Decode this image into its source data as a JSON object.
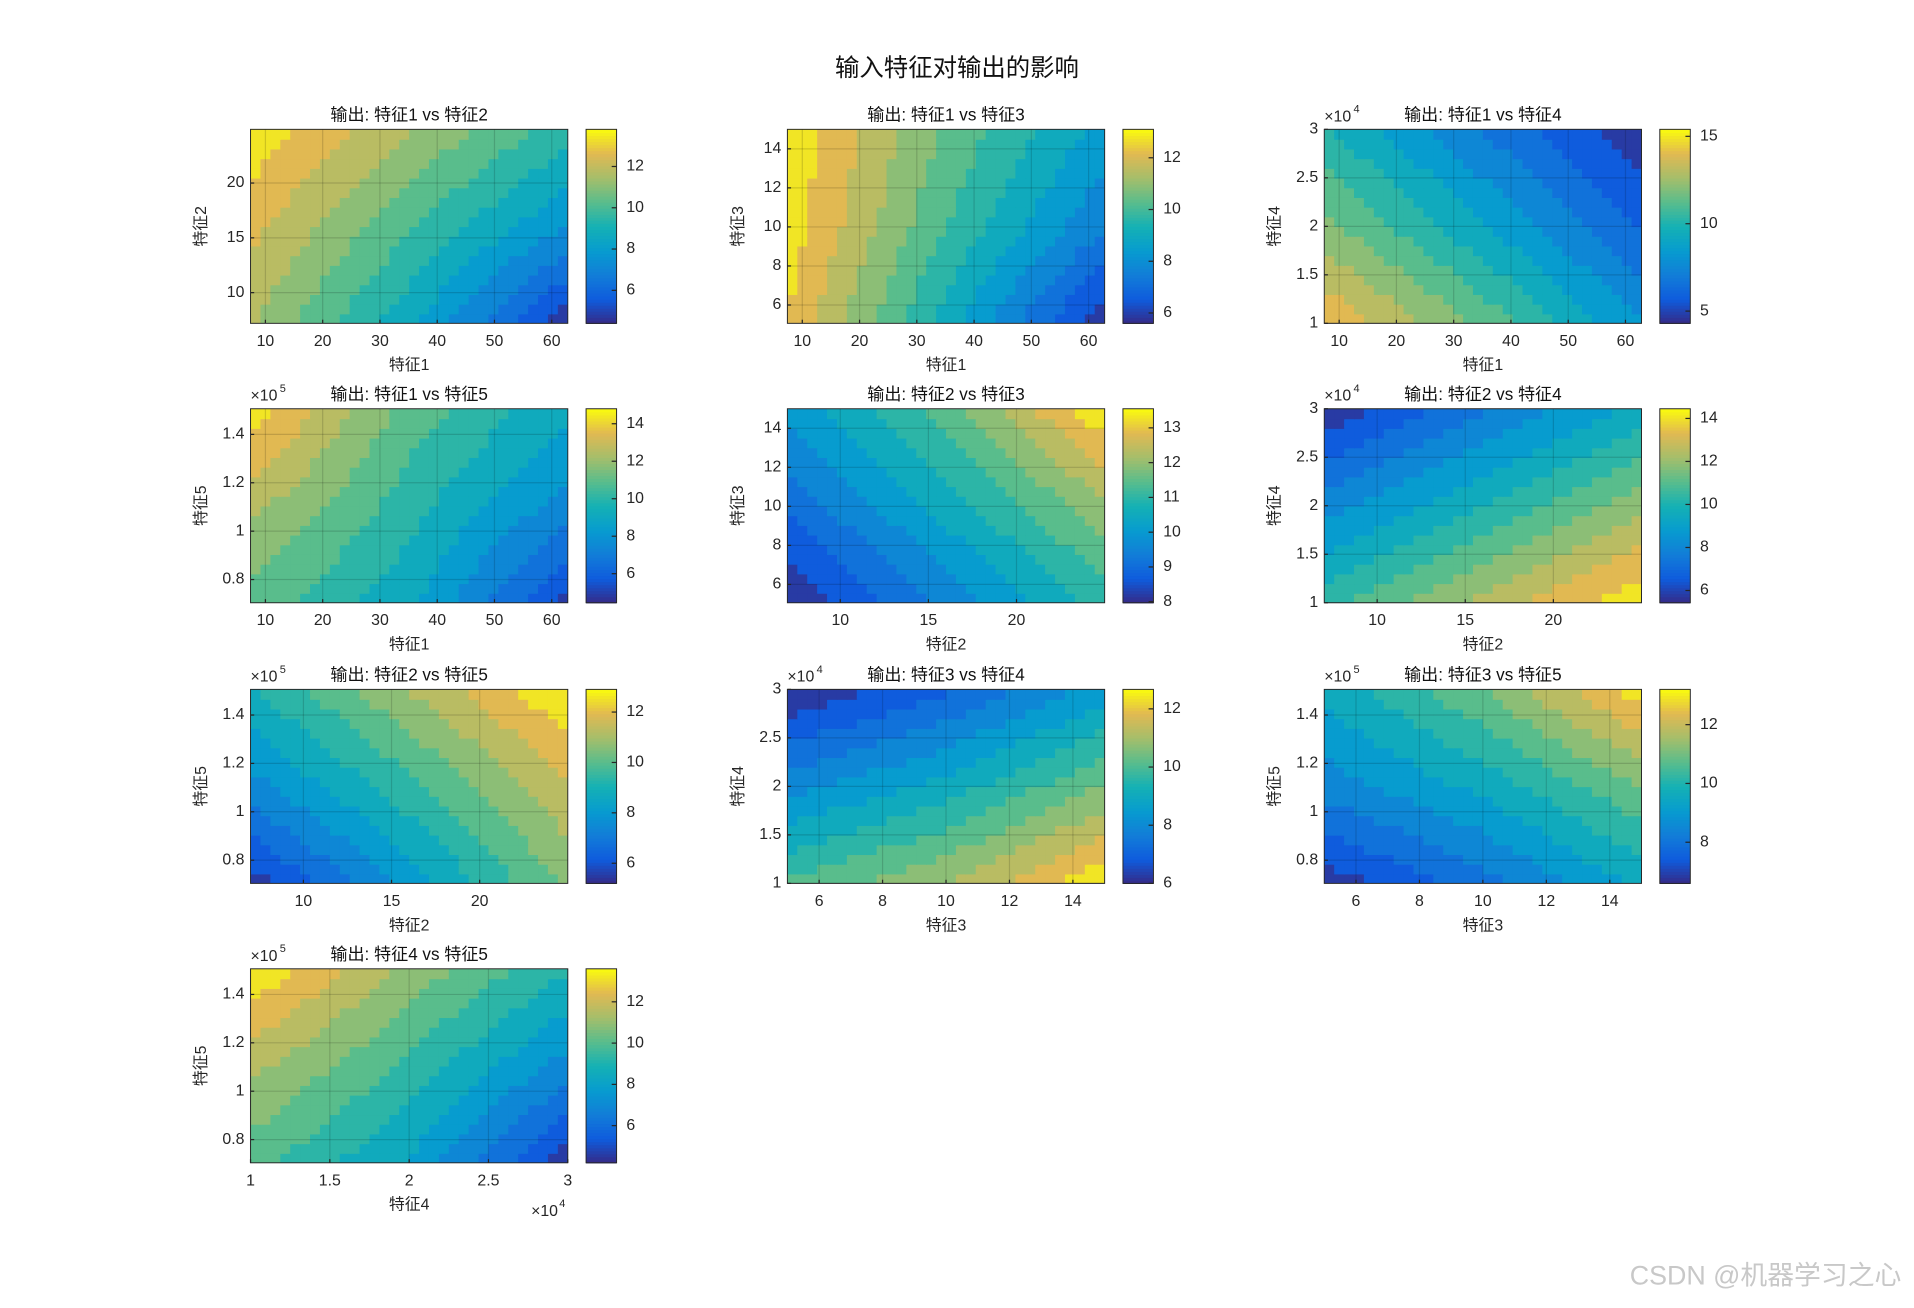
{
  "title": "输入特征对输出的影响",
  "watermark": "CSDN @机器学习之心",
  "chart_data": [
    {
      "type": "contour",
      "title": "输出: 特征1 vs 特征2",
      "xlabel": "特征1",
      "ylabel": "特征2",
      "xlim": [
        7.4,
        62.8
      ],
      "xticks": [
        10,
        20,
        30,
        40,
        50,
        60
      ],
      "ylim": [
        7.2,
        24.9
      ],
      "yticks": [
        10,
        15,
        20
      ],
      "z": [
        [
          11.5,
          8.5,
          4.6
        ],
        [
          12.5,
          10,
          7.5
        ],
        [
          13.6,
          11.5,
          9.5
        ]
      ],
      "clim": [
        4.4,
        13.8
      ],
      "cticks": [
        6,
        8,
        10,
        12
      ],
      "colormap": "parula",
      "grid": true
    },
    {
      "type": "contour",
      "title": "输出: 特征1 vs 特征3",
      "xlabel": "特征1",
      "ylabel": "特征3",
      "xlim": [
        7.4,
        62.8
      ],
      "xticks": [
        10,
        20,
        30,
        40,
        50,
        60
      ],
      "ylim": [
        5.06,
        15
      ],
      "yticks": [
        6,
        8,
        10,
        12,
        14
      ],
      "z": [
        [
          12.5,
          9,
          5.7
        ],
        [
          12.8,
          10,
          7.5
        ],
        [
          13,
          10.5,
          8.5
        ]
      ],
      "clim": [
        5.6,
        13.1
      ],
      "cticks": [
        6,
        8,
        10,
        12
      ],
      "colormap": "parula",
      "grid": true
    },
    {
      "type": "contour",
      "title": "输出: 特征1 vs 特征4",
      "xlabel": "特征1",
      "ylabel": "特征4",
      "xlim": [
        7.4,
        62.8
      ],
      "xticks": [
        10,
        20,
        30,
        40,
        50,
        60
      ],
      "ylim": [
        1,
        3
      ],
      "yticks": [
        1,
        1.5,
        2,
        2.5,
        3
      ],
      "y_multiplier": {
        "base": "×10",
        "exponent": 4
      },
      "z": [
        [
          14.5,
          11.5,
          8
        ],
        [
          12,
          9,
          6
        ],
        [
          10,
          7,
          4.5
        ]
      ],
      "clim": [
        4.3,
        15.4
      ],
      "cticks": [
        5,
        10,
        15
      ],
      "colormap": "parula",
      "grid": true
    },
    {
      "type": "contour",
      "title": "输出: 特征1 vs 特征5",
      "xlabel": "特征1",
      "ylabel": "特征5",
      "xlim": [
        7.4,
        62.8
      ],
      "xticks": [
        10,
        20,
        30,
        40,
        50,
        60
      ],
      "ylim": [
        0.704,
        1.506
      ],
      "yticks": [
        0.8,
        1,
        1.2,
        1.4
      ],
      "y_multiplier": {
        "base": "×10",
        "exponent": 5
      },
      "z": [
        [
          11,
          9,
          5
        ],
        [
          12.5,
          10,
          7.5
        ],
        [
          14.5,
          11,
          9
        ]
      ],
      "clim": [
        4.45,
        14.8
      ],
      "cticks": [
        6,
        8,
        10,
        12,
        14
      ],
      "colormap": "parula",
      "grid": true
    },
    {
      "type": "contour",
      "title": "输出: 特征2 vs 特征3",
      "xlabel": "特征2",
      "ylabel": "特征3",
      "xlim": [
        7,
        25
      ],
      "xticks": [
        10,
        15,
        20
      ],
      "ylim": [
        5.06,
        15
      ],
      "yticks": [
        6,
        8,
        10,
        12,
        14
      ],
      "z": [
        [
          8,
          9.5,
          11
        ],
        [
          9,
          10.5,
          12
        ],
        [
          10,
          11.5,
          13.5
        ]
      ],
      "clim": [
        7.97,
        13.55
      ],
      "cticks": [
        8,
        9,
        10,
        11,
        12,
        13
      ],
      "colormap": "parula",
      "grid": true
    },
    {
      "type": "contour",
      "title": "输出: 特征2 vs 特征4",
      "xlabel": "特征2",
      "ylabel": "特征4",
      "xlim": [
        7,
        25
      ],
      "xticks": [
        10,
        15,
        20
      ],
      "ylim": [
        1,
        3
      ],
      "yticks": [
        1,
        1.5,
        2,
        2.5,
        3
      ],
      "y_multiplier": {
        "base": "×10",
        "exponent": 4
      },
      "z": [
        [
          10.5,
          12.5,
          14.3
        ],
        [
          8,
          10,
          12
        ],
        [
          5.5,
          7.5,
          9.5
        ]
      ],
      "clim": [
        5.43,
        14.45
      ],
      "cticks": [
        6,
        8,
        10,
        12,
        14
      ],
      "colormap": "parula",
      "grid": true
    },
    {
      "type": "contour",
      "title": "输出: 特征2 vs 特征5",
      "xlabel": "特征2",
      "ylabel": "特征5",
      "xlim": [
        7,
        25
      ],
      "xticks": [
        10,
        15,
        20
      ],
      "ylim": [
        0.704,
        1.506
      ],
      "yticks": [
        0.8,
        1,
        1.2,
        1.4
      ],
      "y_multiplier": {
        "base": "×10",
        "exponent": 5
      },
      "z": [
        [
          5.5,
          8,
          10.5
        ],
        [
          7.5,
          9.5,
          11.5
        ],
        [
          9,
          11,
          12.9
        ]
      ],
      "clim": [
        5.2,
        12.9
      ],
      "cticks": [
        6,
        8,
        10,
        12
      ],
      "colormap": "parula",
      "grid": true
    },
    {
      "type": "contour",
      "title": "输出: 特征3 vs 特征4",
      "xlabel": "特征3",
      "ylabel": "特征4",
      "xlim": [
        5,
        15
      ],
      "xticks": [
        6,
        8,
        10,
        12,
        14
      ],
      "ylim": [
        1,
        3
      ],
      "yticks": [
        1,
        1.5,
        2,
        2.5,
        3
      ],
      "y_multiplier": {
        "base": "×10",
        "exponent": 4
      },
      "z": [
        [
          10,
          11,
          12.6
        ],
        [
          8,
          9,
          10.5
        ],
        [
          6,
          7,
          8.5
        ]
      ],
      "clim": [
        6,
        12.67
      ],
      "cticks": [
        6,
        8,
        10,
        12
      ],
      "colormap": "parula",
      "grid": true
    },
    {
      "type": "contour",
      "title": "输出: 特征3 vs 特征5",
      "xlabel": "特征3",
      "ylabel": "特征5",
      "xlim": [
        5,
        15
      ],
      "xticks": [
        6,
        8,
        10,
        12,
        14
      ],
      "ylim": [
        0.704,
        1.506
      ],
      "yticks": [
        0.8,
        1,
        1.2,
        1.4
      ],
      "y_multiplier": {
        "base": "×10",
        "exponent": 5
      },
      "z": [
        [
          6.8,
          8,
          9.5
        ],
        [
          8.5,
          9.5,
          11
        ],
        [
          9.5,
          11,
          13
        ]
      ],
      "clim": [
        6.6,
        13.2
      ],
      "cticks": [
        8,
        10,
        12
      ],
      "colormap": "parula",
      "grid": true
    },
    {
      "type": "contour",
      "title": "输出: 特征4 vs 特征5",
      "xlabel": "特征4",
      "ylabel": "特征5",
      "xlim": [
        1,
        3
      ],
      "xticks": [
        1,
        1.5,
        2,
        2.5,
        3
      ],
      "x_multiplier": {
        "base": "×10",
        "exponent": 4
      },
      "ylim": [
        0.704,
        1.506
      ],
      "yticks": [
        0.8,
        1,
        1.2,
        1.4
      ],
      "y_multiplier": {
        "base": "×10",
        "exponent": 5
      },
      "z": [
        [
          10,
          8,
          4.5
        ],
        [
          11.5,
          9.5,
          7
        ],
        [
          13.5,
          11,
          9
        ]
      ],
      "clim": [
        4.2,
        13.6
      ],
      "cticks": [
        6,
        8,
        10,
        12
      ],
      "colormap": "parula",
      "grid": true
    }
  ]
}
